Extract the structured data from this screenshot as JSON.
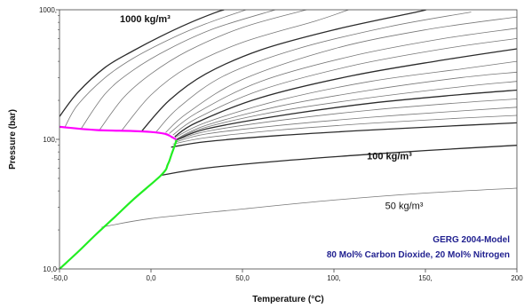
{
  "chart_data": {
    "type": "line",
    "xlabel": "Temperature (°C)",
    "ylabel": "Pressure (bar)",
    "xlim": [
      -50,
      200
    ],
    "ylim": [
      10,
      1000
    ],
    "yscale": "log",
    "x_ticks": [
      {
        "value": -50,
        "label": "-50,0"
      },
      {
        "value": 0,
        "label": "0,0"
      },
      {
        "value": 50,
        "label": "50,0"
      },
      {
        "value": 100,
        "label": "100,"
      },
      {
        "value": 150,
        "label": "150,"
      },
      {
        "value": 200,
        "label": "200"
      }
    ],
    "y_ticks": [
      {
        "value": 10,
        "label": "10,0"
      },
      {
        "value": 100,
        "label": "100,"
      },
      {
        "value": 1000,
        "label": "1000,"
      }
    ],
    "grid": false,
    "annotations": [
      {
        "text": "1000 kg/m³",
        "x": -17,
        "y": 800,
        "bold": true
      },
      {
        "text": "100 kg/m³",
        "x": 118,
        "y": 70,
        "bold": true
      },
      {
        "text": "50 kg/m³",
        "x": 128,
        "y": 29,
        "bold": false
      }
    ],
    "legend_lines": [
      "GERG 2004-Model",
      "80 Mol% Carbon Dioxide, 20 Mol% Nitrogen"
    ],
    "colors": {
      "isochore_dark": "#2b2b2b",
      "isochore_light": "#777777",
      "bubble_line": "#ff00ff",
      "dew_line": "#22ee22",
      "legend_text": "#1f1f8f"
    },
    "bubble_line": {
      "name": "",
      "x": [
        -50,
        -30,
        -10,
        0,
        5,
        8,
        10,
        12,
        14
      ],
      "y": [
        125,
        118,
        116,
        114,
        112,
        110,
        107,
        103,
        99
      ]
    },
    "dew_line": {
      "name": "",
      "x": [
        -50,
        -40,
        -30,
        -20,
        -10,
        0,
        5,
        8,
        9,
        10,
        11,
        12,
        13,
        14
      ],
      "y": [
        10,
        13.5,
        18.5,
        25,
        34,
        45,
        52,
        58,
        63,
        68,
        75,
        82,
        90,
        99
      ]
    },
    "isochores": [
      {
        "rho": 1000,
        "dark": true,
        "points": [
          [
            -50,
            150
          ],
          [
            -40,
            230
          ],
          [
            -25,
            360
          ],
          [
            -10,
            480
          ],
          [
            5,
            620
          ],
          [
            20,
            780
          ],
          [
            35,
            950
          ],
          [
            40,
            1000
          ]
        ]
      },
      {
        "rho": 980,
        "dark": false,
        "points": [
          [
            -47,
            125
          ],
          [
            -40,
            185
          ],
          [
            -25,
            300
          ],
          [
            -10,
            420
          ],
          [
            10,
            590
          ],
          [
            30,
            780
          ],
          [
            52,
            1000
          ]
        ]
      },
      {
        "rho": 960,
        "dark": false,
        "points": [
          [
            -38,
            122
          ],
          [
            -25,
            225
          ],
          [
            -10,
            340
          ],
          [
            10,
            500
          ],
          [
            35,
            720
          ],
          [
            68,
            1000
          ]
        ]
      },
      {
        "rho": 940,
        "dark": false,
        "points": [
          [
            -28,
            119
          ],
          [
            -15,
            210
          ],
          [
            0,
            320
          ],
          [
            20,
            480
          ],
          [
            50,
            730
          ],
          [
            85,
            1000
          ]
        ]
      },
      {
        "rho": 900,
        "dark": false,
        "points": [
          [
            -16,
            117
          ],
          [
            0,
            220
          ],
          [
            20,
            360
          ],
          [
            50,
            560
          ],
          [
            90,
            820
          ],
          [
            108,
            1000
          ]
        ]
      },
      {
        "rho": 850,
        "dark": true,
        "points": [
          [
            -5,
            116
          ],
          [
            10,
            200
          ],
          [
            30,
            320
          ],
          [
            60,
            490
          ],
          [
            100,
            700
          ],
          [
            145,
            960
          ],
          [
            150,
            1000
          ]
        ]
      },
      {
        "rho": 800,
        "dark": false,
        "points": [
          [
            3,
            115
          ],
          [
            15,
            175
          ],
          [
            40,
            310
          ],
          [
            80,
            500
          ],
          [
            130,
            740
          ],
          [
            175,
            960
          ]
        ]
      },
      {
        "rho": 750,
        "dark": false,
        "points": [
          [
            8,
            113
          ],
          [
            20,
            160
          ],
          [
            50,
            290
          ],
          [
            100,
            500
          ],
          [
            150,
            700
          ],
          [
            200,
            880
          ]
        ]
      },
      {
        "rho": 700,
        "dark": false,
        "points": [
          [
            10,
            111
          ],
          [
            25,
            160
          ],
          [
            60,
            280
          ],
          [
            110,
            440
          ],
          [
            160,
            600
          ],
          [
            200,
            720
          ]
        ]
      },
      {
        "rho": 650,
        "dark": false,
        "points": [
          [
            12,
            108
          ],
          [
            25,
            145
          ],
          [
            60,
            240
          ],
          [
            110,
            370
          ],
          [
            160,
            500
          ],
          [
            200,
            600
          ]
        ]
      },
      {
        "rho": 600,
        "dark": true,
        "points": [
          [
            13,
            105
          ],
          [
            25,
            135
          ],
          [
            60,
            210
          ],
          [
            110,
            310
          ],
          [
            160,
            410
          ],
          [
            200,
            500
          ]
        ]
      },
      {
        "rho": 550,
        "dark": false,
        "points": [
          [
            13,
            103
          ],
          [
            30,
            135
          ],
          [
            70,
            200
          ],
          [
            120,
            280
          ],
          [
            170,
            350
          ],
          [
            200,
            400
          ]
        ]
      },
      {
        "rho": 500,
        "dark": false,
        "points": [
          [
            14,
            101
          ],
          [
            30,
            128
          ],
          [
            70,
            180
          ],
          [
            120,
            240
          ],
          [
            170,
            300
          ],
          [
            200,
            330
          ]
        ]
      },
      {
        "rho": 450,
        "dark": false,
        "points": [
          [
            14,
            100
          ],
          [
            30,
            124
          ],
          [
            70,
            165
          ],
          [
            120,
            210
          ],
          [
            170,
            255
          ],
          [
            200,
            280
          ]
        ]
      },
      {
        "rho": 400,
        "dark": true,
        "points": [
          [
            14,
            99
          ],
          [
            30,
            120
          ],
          [
            70,
            152
          ],
          [
            120,
            190
          ],
          [
            170,
            222
          ],
          [
            200,
            240
          ]
        ]
      },
      {
        "rho": 350,
        "dark": false,
        "points": [
          [
            13,
            97
          ],
          [
            30,
            115
          ],
          [
            70,
            140
          ],
          [
            120,
            168
          ],
          [
            170,
            192
          ],
          [
            200,
            205
          ]
        ]
      },
      {
        "rho": 300,
        "dark": false,
        "points": [
          [
            13,
            95
          ],
          [
            30,
            110
          ],
          [
            70,
            128
          ],
          [
            120,
            148
          ],
          [
            170,
            166
          ],
          [
            200,
            177
          ]
        ]
      },
      {
        "rho": 250,
        "dark": false,
        "points": [
          [
            12,
            92
          ],
          [
            30,
            103
          ],
          [
            70,
            118
          ],
          [
            120,
            133
          ],
          [
            170,
            146
          ],
          [
            200,
            153
          ]
        ]
      },
      {
        "rho": 200,
        "dark": true,
        "points": [
          [
            11,
            87
          ],
          [
            30,
            96
          ],
          [
            70,
            107
          ],
          [
            120,
            118
          ],
          [
            170,
            128
          ],
          [
            200,
            134
          ]
        ]
      },
      {
        "rho": 100,
        "dark": true,
        "points": [
          [
            6,
            53
          ],
          [
            30,
            60
          ],
          [
            70,
            68
          ],
          [
            110,
            75
          ],
          [
            150,
            82
          ],
          [
            200,
            90
          ]
        ]
      },
      {
        "rho": 50,
        "dark": false,
        "points": [
          [
            -27,
            21
          ],
          [
            0,
            24.5
          ],
          [
            50,
            29
          ],
          [
            100,
            34
          ],
          [
            150,
            38.5
          ],
          [
            200,
            42
          ]
        ]
      }
    ]
  }
}
